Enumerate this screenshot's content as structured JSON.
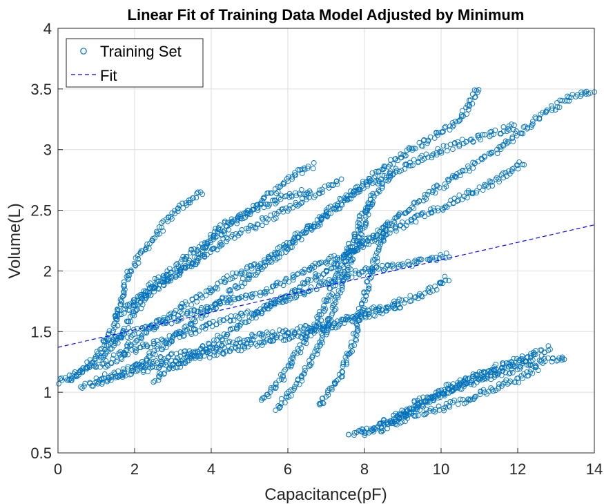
{
  "chart_data": {
    "type": "scatter",
    "title": "Linear Fit of Training Data Model Adjusted by Minimum",
    "xlabel": "Capacitance(pF)",
    "ylabel": "Volume(L)",
    "xlim": [
      0,
      14
    ],
    "ylim": [
      0.5,
      4
    ],
    "xticks": [
      "0",
      "2",
      "4",
      "6",
      "8",
      "10",
      "12",
      "14"
    ],
    "yticks": [
      "0.5",
      "1",
      "1.5",
      "2",
      "2.5",
      "3",
      "3.5",
      "4"
    ],
    "grid": true,
    "legend_position": "top-left",
    "colors": {
      "training": "#0072BD",
      "fit": "#0000FF"
    },
    "series": [
      {
        "name": "Training Set",
        "kind": "scatter",
        "marker": "circle-open",
        "traces": [
          [
            [
              0.0,
              1.08
            ],
            [
              0.5,
              1.15
            ],
            [
              1.0,
              1.3
            ],
            [
              1.5,
              1.55
            ],
            [
              1.8,
              1.95
            ],
            [
              2.2,
              2.15
            ],
            [
              2.8,
              2.4
            ],
            [
              3.3,
              2.55
            ],
            [
              3.8,
              2.66
            ]
          ],
          [
            [
              0.3,
              1.1
            ],
            [
              1.0,
              1.25
            ],
            [
              1.6,
              1.45
            ],
            [
              2.2,
              1.75
            ],
            [
              2.8,
              1.95
            ],
            [
              3.4,
              2.15
            ],
            [
              4.0,
              2.25
            ],
            [
              4.6,
              2.4
            ],
            [
              5.2,
              2.55
            ],
            [
              5.8,
              2.7
            ],
            [
              6.3,
              2.82
            ],
            [
              6.7,
              2.88
            ]
          ],
          [
            [
              1.5,
              1.3
            ],
            [
              2.5,
              1.55
            ],
            [
              3.5,
              1.75
            ],
            [
              4.5,
              1.95
            ],
            [
              5.5,
              2.1
            ],
            [
              6.5,
              2.35
            ],
            [
              7.5,
              2.6
            ],
            [
              8.5,
              2.85
            ],
            [
              9.5,
              3.05
            ],
            [
              10.5,
              3.25
            ],
            [
              11.0,
              3.52
            ]
          ],
          [
            [
              2.0,
              1.2
            ],
            [
              3.0,
              1.45
            ],
            [
              4.0,
              1.7
            ],
            [
              5.0,
              1.95
            ],
            [
              6.0,
              2.2
            ],
            [
              7.0,
              2.45
            ],
            [
              8.0,
              2.7
            ],
            [
              9.0,
              2.85
            ],
            [
              10.0,
              3.0
            ],
            [
              11.0,
              3.1
            ],
            [
              12.0,
              3.2
            ]
          ],
          [
            [
              2.5,
              1.1
            ],
            [
              3.5,
              1.3
            ],
            [
              4.5,
              1.5
            ],
            [
              5.5,
              1.7
            ],
            [
              6.5,
              1.9
            ],
            [
              7.5,
              2.1
            ],
            [
              8.5,
              2.35
            ],
            [
              9.5,
              2.6
            ],
            [
              10.5,
              2.8
            ],
            [
              11.5,
              3.0
            ],
            [
              12.5,
              3.25
            ],
            [
              13.2,
              3.4
            ],
            [
              14.0,
              3.5
            ]
          ],
          [
            [
              1.0,
              1.2
            ],
            [
              2.0,
              1.35
            ],
            [
              3.0,
              1.45
            ],
            [
              4.0,
              1.55
            ],
            [
              5.0,
              1.65
            ],
            [
              6.0,
              1.78
            ],
            [
              7.0,
              1.9
            ],
            [
              8.0,
              2.0
            ],
            [
              9.0,
              2.05
            ],
            [
              9.5,
              2.08
            ],
            [
              10.2,
              2.14
            ]
          ],
          [
            [
              1.2,
              1.4
            ],
            [
              2.5,
              1.55
            ],
            [
              3.5,
              1.65
            ],
            [
              4.5,
              1.75
            ],
            [
              5.5,
              1.85
            ],
            [
              6.5,
              2.0
            ],
            [
              7.5,
              2.15
            ],
            [
              8.5,
              2.3
            ],
            [
              9.5,
              2.45
            ],
            [
              10.5,
              2.6
            ],
            [
              11.5,
              2.75
            ],
            [
              12.2,
              2.9
            ]
          ],
          [
            [
              1.0,
              1.1
            ],
            [
              2.0,
              1.2
            ],
            [
              3.0,
              1.3
            ],
            [
              4.0,
              1.35
            ],
            [
              5.0,
              1.45
            ],
            [
              6.0,
              1.5
            ],
            [
              7.0,
              1.55
            ],
            [
              8.0,
              1.65
            ],
            [
              9.0,
              1.75
            ],
            [
              9.8,
              1.85
            ],
            [
              10.2,
              1.95
            ]
          ],
          [
            [
              0.6,
              1.05
            ],
            [
              1.5,
              1.12
            ],
            [
              2.5,
              1.2
            ],
            [
              3.5,
              1.28
            ],
            [
              4.5,
              1.35
            ],
            [
              5.5,
              1.42
            ],
            [
              6.5,
              1.48
            ],
            [
              7.5,
              1.58
            ],
            [
              8.5,
              1.68
            ],
            [
              9.0,
              1.72
            ]
          ],
          [
            [
              5.3,
              0.92
            ],
            [
              5.8,
              1.1
            ],
            [
              6.3,
              1.35
            ],
            [
              6.8,
              1.6
            ],
            [
              7.2,
              1.9
            ],
            [
              7.6,
              2.2
            ],
            [
              8.0,
              2.5
            ],
            [
              8.4,
              2.7
            ],
            [
              8.8,
              2.8
            ]
          ],
          [
            [
              5.7,
              0.86
            ],
            [
              6.2,
              1.05
            ],
            [
              6.7,
              1.3
            ],
            [
              7.1,
              1.6
            ],
            [
              7.5,
              1.95
            ],
            [
              7.9,
              2.3
            ],
            [
              8.2,
              2.6
            ]
          ],
          [
            [
              6.8,
              0.88
            ],
            [
              7.3,
              1.1
            ],
            [
              7.7,
              1.4
            ],
            [
              8.0,
              1.8
            ],
            [
              8.3,
              2.1
            ],
            [
              8.6,
              2.4
            ]
          ],
          [
            [
              1.5,
              1.6
            ],
            [
              2.3,
              1.8
            ],
            [
              3.0,
              1.95
            ],
            [
              3.6,
              2.1
            ],
            [
              4.2,
              2.35
            ],
            [
              4.8,
              2.45
            ],
            [
              5.4,
              2.55
            ],
            [
              6.0,
              2.62
            ],
            [
              6.6,
              2.66
            ]
          ],
          [
            [
              1.8,
              1.7
            ],
            [
              2.5,
              1.9
            ],
            [
              3.2,
              2.0
            ],
            [
              3.8,
              2.12
            ],
            [
              4.4,
              2.25
            ],
            [
              5.0,
              2.35
            ],
            [
              5.6,
              2.45
            ],
            [
              6.2,
              2.55
            ],
            [
              6.8,
              2.65
            ],
            [
              7.4,
              2.75
            ]
          ],
          [
            [
              7.6,
              0.64
            ],
            [
              8.2,
              0.7
            ],
            [
              8.8,
              0.8
            ],
            [
              9.4,
              0.92
            ],
            [
              10.0,
              1.02
            ],
            [
              10.6,
              1.1
            ],
            [
              11.2,
              1.18
            ],
            [
              11.8,
              1.24
            ],
            [
              12.4,
              1.3
            ],
            [
              12.9,
              1.37
            ]
          ],
          [
            [
              8.0,
              0.66
            ],
            [
              8.6,
              0.75
            ],
            [
              9.2,
              0.85
            ],
            [
              9.8,
              0.95
            ],
            [
              10.4,
              1.03
            ],
            [
              11.0,
              1.1
            ],
            [
              11.6,
              1.16
            ],
            [
              12.2,
              1.22
            ],
            [
              12.8,
              1.26
            ],
            [
              13.3,
              1.27
            ]
          ],
          [
            [
              8.4,
              0.68
            ],
            [
              9.0,
              0.8
            ],
            [
              9.6,
              0.92
            ],
            [
              10.2,
              1.02
            ],
            [
              10.8,
              1.1
            ],
            [
              11.4,
              1.18
            ],
            [
              12.0,
              1.24
            ],
            [
              12.5,
              1.3
            ]
          ],
          [
            [
              8.8,
              0.75
            ],
            [
              9.3,
              0.82
            ],
            [
              9.8,
              0.85
            ],
            [
              10.3,
              0.9
            ],
            [
              10.9,
              0.97
            ],
            [
              11.5,
              1.05
            ],
            [
              12.1,
              1.12
            ],
            [
              12.6,
              1.2
            ]
          ]
        ]
      },
      {
        "name": "Fit",
        "kind": "line",
        "style": "dashed",
        "x": [
          0,
          14
        ],
        "y": [
          1.37,
          2.38
        ]
      }
    ]
  }
}
